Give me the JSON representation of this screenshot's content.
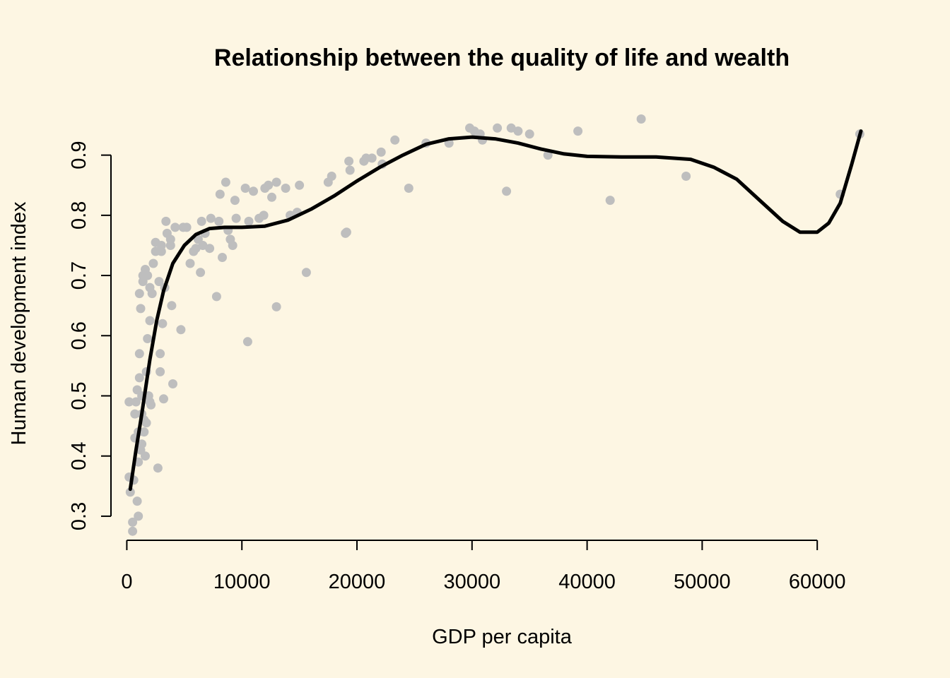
{
  "chart_data": {
    "type": "scatter",
    "title": "Relationship between the quality of life and wealth",
    "xlabel": "GDP per capita",
    "ylabel": "Human development index",
    "xlim": [
      -1500,
      66500
    ],
    "ylim": [
      0.26,
      0.97
    ],
    "x_ticks": [
      0,
      10000,
      20000,
      30000,
      40000,
      50000,
      60000
    ],
    "x_tick_labels": [
      "0",
      "10000",
      "20000",
      "30000",
      "40000",
      "50000",
      "60000"
    ],
    "y_ticks": [
      0.3,
      0.4,
      0.5,
      0.6,
      0.7,
      0.8,
      0.9
    ],
    "y_tick_labels": [
      "0.3",
      "0.4",
      "0.5",
      "0.6",
      "0.7",
      "0.8",
      "0.9"
    ],
    "grid": false,
    "legend": "none",
    "colors": {
      "background": "#fdf6e3",
      "points": "#bebebe",
      "line": "#000000"
    },
    "series": [
      {
        "kind": "points",
        "points": [
          [
            200,
            0.49
          ],
          [
            200,
            0.365
          ],
          [
            300,
            0.34
          ],
          [
            500,
            0.275
          ],
          [
            500,
            0.29
          ],
          [
            600,
            0.36
          ],
          [
            700,
            0.43
          ],
          [
            700,
            0.47
          ],
          [
            800,
            0.49
          ],
          [
            900,
            0.51
          ],
          [
            900,
            0.325
          ],
          [
            1000,
            0.3
          ],
          [
            1000,
            0.39
          ],
          [
            1000,
            0.44
          ],
          [
            1100,
            0.53
          ],
          [
            1100,
            0.57
          ],
          [
            1100,
            0.67
          ],
          [
            1200,
            0.645
          ],
          [
            1200,
            0.41
          ],
          [
            1300,
            0.42
          ],
          [
            1300,
            0.47
          ],
          [
            1300,
            0.5
          ],
          [
            1400,
            0.69
          ],
          [
            1400,
            0.7
          ],
          [
            1500,
            0.44
          ],
          [
            1500,
            0.46
          ],
          [
            1600,
            0.71
          ],
          [
            1600,
            0.4
          ],
          [
            1700,
            0.455
          ],
          [
            1700,
            0.54
          ],
          [
            1800,
            0.7
          ],
          [
            1800,
            0.595
          ],
          [
            1900,
            0.5
          ],
          [
            2000,
            0.68
          ],
          [
            2000,
            0.625
          ],
          [
            2000,
            0.49
          ],
          [
            2100,
            0.485
          ],
          [
            2200,
            0.67
          ],
          [
            2300,
            0.72
          ],
          [
            2500,
            0.74
          ],
          [
            2500,
            0.755
          ],
          [
            2700,
            0.38
          ],
          [
            2800,
            0.69
          ],
          [
            2900,
            0.57
          ],
          [
            2900,
            0.54
          ],
          [
            3000,
            0.75
          ],
          [
            3000,
            0.74
          ],
          [
            3100,
            0.62
          ],
          [
            3200,
            0.495
          ],
          [
            3300,
            0.68
          ],
          [
            3400,
            0.79
          ],
          [
            3500,
            0.77
          ],
          [
            3800,
            0.76
          ],
          [
            3800,
            0.75
          ],
          [
            3900,
            0.65
          ],
          [
            4000,
            0.52
          ],
          [
            4200,
            0.78
          ],
          [
            4700,
            0.61
          ],
          [
            4900,
            0.78
          ],
          [
            5200,
            0.78
          ],
          [
            5500,
            0.72
          ],
          [
            5800,
            0.74
          ],
          [
            6000,
            0.745
          ],
          [
            6200,
            0.76
          ],
          [
            6400,
            0.705
          ],
          [
            6500,
            0.79
          ],
          [
            6600,
            0.75
          ],
          [
            6800,
            0.77
          ],
          [
            7200,
            0.745
          ],
          [
            7300,
            0.795
          ],
          [
            7800,
            0.665
          ],
          [
            8000,
            0.79
          ],
          [
            8100,
            0.835
          ],
          [
            8300,
            0.73
          ],
          [
            8600,
            0.855
          ],
          [
            8800,
            0.775
          ],
          [
            9000,
            0.76
          ],
          [
            9200,
            0.75
          ],
          [
            9400,
            0.825
          ],
          [
            9500,
            0.795
          ],
          [
            10300,
            0.845
          ],
          [
            10500,
            0.59
          ],
          [
            10600,
            0.79
          ],
          [
            11000,
            0.84
          ],
          [
            11500,
            0.795
          ],
          [
            11900,
            0.8
          ],
          [
            12000,
            0.845
          ],
          [
            12300,
            0.85
          ],
          [
            12600,
            0.83
          ],
          [
            13000,
            0.855
          ],
          [
            13000,
            0.648
          ],
          [
            13800,
            0.845
          ],
          [
            14200,
            0.8
          ],
          [
            14800,
            0.805
          ],
          [
            15000,
            0.85
          ],
          [
            15600,
            0.705
          ],
          [
            17500,
            0.855
          ],
          [
            17800,
            0.865
          ],
          [
            19000,
            0.77
          ],
          [
            19100,
            0.772
          ],
          [
            19300,
            0.89
          ],
          [
            19400,
            0.875
          ],
          [
            20600,
            0.89
          ],
          [
            20800,
            0.895
          ],
          [
            21300,
            0.895
          ],
          [
            22100,
            0.905
          ],
          [
            22200,
            0.885
          ],
          [
            23300,
            0.925
          ],
          [
            24500,
            0.845
          ],
          [
            26000,
            0.92
          ],
          [
            28000,
            0.92
          ],
          [
            29800,
            0.945
          ],
          [
            30200,
            0.94
          ],
          [
            30700,
            0.935
          ],
          [
            30900,
            0.925
          ],
          [
            32200,
            0.945
          ],
          [
            33000,
            0.84
          ],
          [
            33400,
            0.945
          ],
          [
            34000,
            0.94
          ],
          [
            35000,
            0.935
          ],
          [
            36600,
            0.9
          ],
          [
            39200,
            0.94
          ],
          [
            42000,
            0.825
          ],
          [
            44700,
            0.96
          ],
          [
            48600,
            0.865
          ],
          [
            62000,
            0.835
          ],
          [
            63700,
            0.935
          ]
        ]
      },
      {
        "kind": "smooth-line",
        "points": [
          [
            300,
            0.345
          ],
          [
            800,
            0.41
          ],
          [
            1300,
            0.47
          ],
          [
            2000,
            0.56
          ],
          [
            2600,
            0.625
          ],
          [
            3200,
            0.675
          ],
          [
            4000,
            0.72
          ],
          [
            5000,
            0.75
          ],
          [
            6000,
            0.768
          ],
          [
            7200,
            0.778
          ],
          [
            8500,
            0.78
          ],
          [
            10000,
            0.78
          ],
          [
            12000,
            0.782
          ],
          [
            14000,
            0.792
          ],
          [
            16000,
            0.81
          ],
          [
            18000,
            0.832
          ],
          [
            20000,
            0.857
          ],
          [
            22000,
            0.88
          ],
          [
            24000,
            0.9
          ],
          [
            26000,
            0.918
          ],
          [
            28000,
            0.927
          ],
          [
            30000,
            0.93
          ],
          [
            32000,
            0.927
          ],
          [
            34000,
            0.92
          ],
          [
            36000,
            0.91
          ],
          [
            38000,
            0.902
          ],
          [
            40000,
            0.898
          ],
          [
            43000,
            0.897
          ],
          [
            46000,
            0.897
          ],
          [
            49000,
            0.893
          ],
          [
            51000,
            0.88
          ],
          [
            53000,
            0.86
          ],
          [
            55000,
            0.825
          ],
          [
            57000,
            0.79
          ],
          [
            58500,
            0.772
          ],
          [
            60000,
            0.772
          ],
          [
            61000,
            0.787
          ],
          [
            62000,
            0.82
          ],
          [
            63000,
            0.885
          ],
          [
            63800,
            0.94
          ]
        ]
      }
    ]
  }
}
